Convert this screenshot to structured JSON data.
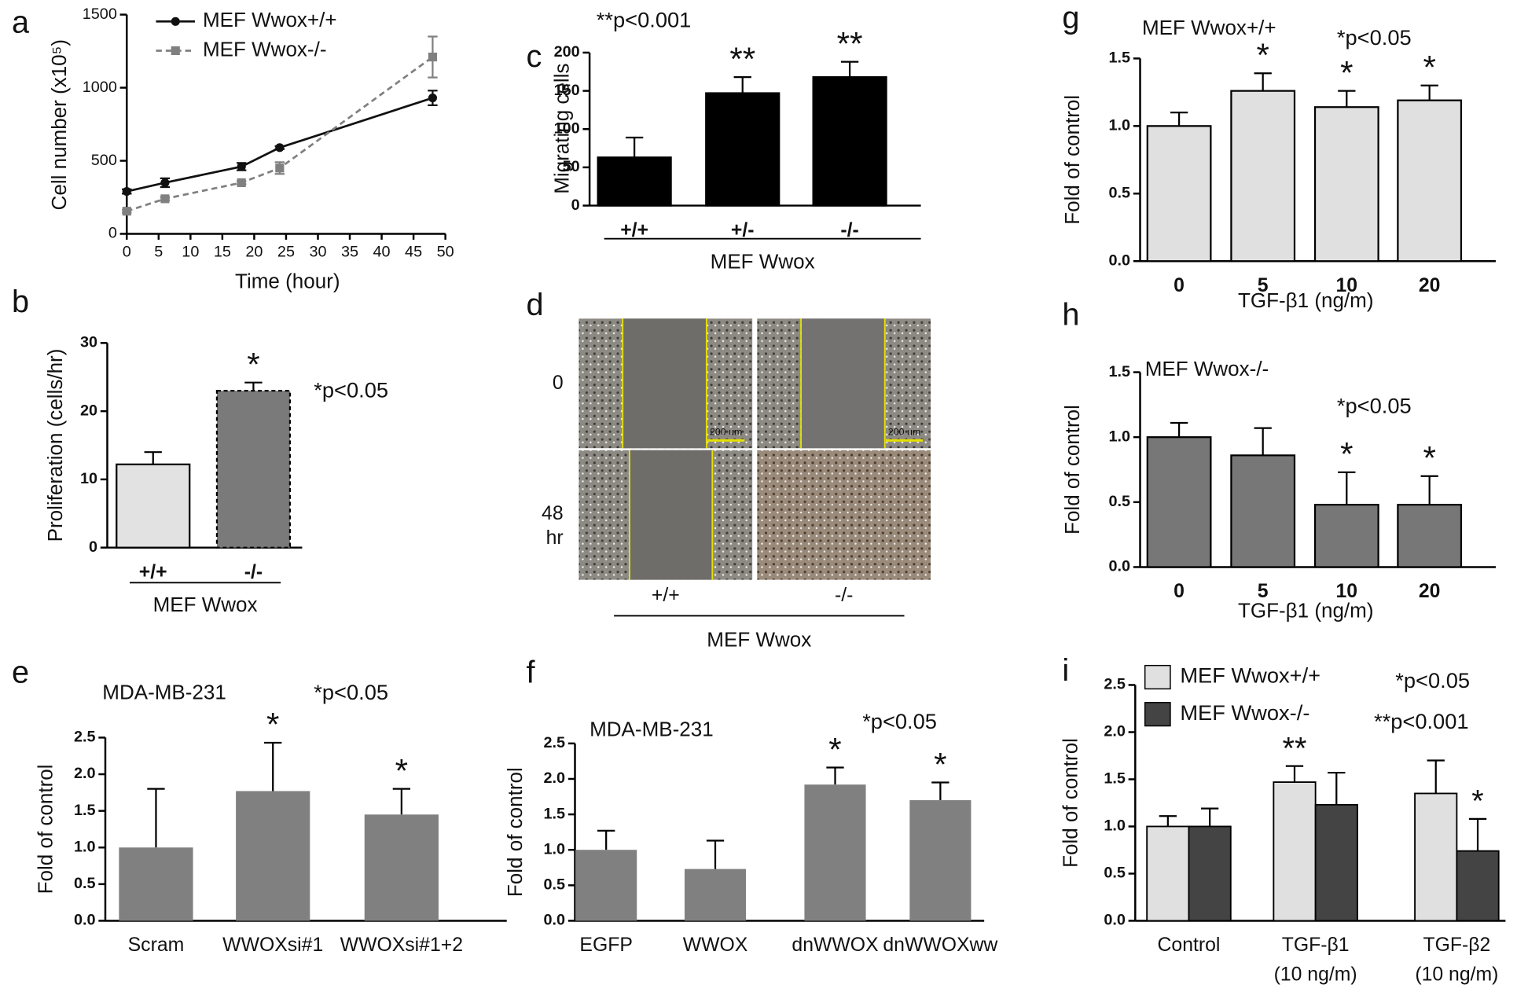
{
  "chart_data": [
    {
      "type": "line",
      "label": "a",
      "y_label": "Cell number (x10⁵)",
      "x_label": "Time (hour)",
      "x": [
        0,
        6,
        18,
        24,
        48
      ],
      "xlim": [
        0,
        50
      ],
      "xticks": [
        0,
        5,
        10,
        15,
        20,
        25,
        30,
        35,
        40,
        45,
        50
      ],
      "ylim": [
        0,
        1500
      ],
      "yticks": [
        0,
        500,
        1000,
        1500
      ],
      "series": [
        {
          "name": "MEF Wwox+/+",
          "color": "#111111",
          "marker": "circle",
          "dashed": false,
          "values": [
            290,
            350,
            460,
            590,
            930
          ],
          "errors": [
            15,
            30,
            25,
            10,
            50
          ]
        },
        {
          "name": "MEF Wwox-/-",
          "color": "#808080",
          "marker": "square",
          "dashed": true,
          "values": [
            155,
            240,
            350,
            450,
            1210
          ],
          "errors": [
            10,
            10,
            10,
            40,
            140
          ]
        }
      ]
    },
    {
      "type": "bar",
      "label": "b",
      "y_label": "Proliferation (cells/hr)",
      "group_label": "MEF Wwox",
      "categories": [
        "+/+",
        "-/-"
      ],
      "values": [
        12.2,
        23
      ],
      "errors": [
        1.8,
        1.2
      ],
      "colors": [
        "#e2e2e2",
        "#7a7a7a"
      ],
      "bar_borders": [
        "solid",
        "dashed"
      ],
      "ylim": [
        0,
        30
      ],
      "yticks": [
        0,
        10,
        20,
        30
      ],
      "annotations": [
        "*p<0.05"
      ],
      "significance": [
        {
          "category": "-/-",
          "label": "*"
        }
      ]
    },
    {
      "type": "bar",
      "label": "c",
      "y_label": "Migrating cells",
      "group_label": "MEF Wwox",
      "categories": [
        "+/+",
        "+/-",
        "-/-"
      ],
      "values": [
        63,
        147,
        168
      ],
      "errors": [
        26,
        21,
        20
      ],
      "colors": [
        "#000000",
        "#000000",
        "#000000"
      ],
      "bar_borders": [
        "solid",
        "solid",
        "solid"
      ],
      "ylim": [
        0,
        200
      ],
      "yticks": [
        0,
        50,
        100,
        150,
        200
      ],
      "annotations": [
        "**p<0.001"
      ],
      "significance": [
        {
          "category": "+/-",
          "label": "**"
        },
        {
          "category": "-/-",
          "label": "**"
        }
      ]
    },
    {
      "type": "micrograph",
      "label": "d",
      "row_labels": [
        "0",
        "48",
        "hr"
      ],
      "column_labels": [
        "+/+",
        "-/-"
      ],
      "group_label": "MEF Wwox",
      "scale_bar": "200 um"
    },
    {
      "type": "bar",
      "label": "e",
      "title": "MDA-MB-231",
      "y_label": "Fold of control",
      "categories": [
        "Scram",
        "WWOXsi#1",
        "WWOXsi#1+2"
      ],
      "values": [
        1.0,
        1.77,
        1.45
      ],
      "errors": [
        0.8,
        0.66,
        0.35
      ],
      "colors": [
        "#808080",
        "#808080",
        "#808080"
      ],
      "bar_borders": [
        "none",
        "none",
        "none"
      ],
      "ylim": [
        0,
        2.5
      ],
      "yticks": [
        {
          "value": 0,
          "label": "0.0"
        },
        0.5,
        {
          "value": 1,
          "label": "1.0"
        },
        1.5,
        {
          "value": 2,
          "label": "2.0"
        },
        2.5
      ],
      "annotations": [
        "*p<0.05"
      ],
      "significance": [
        {
          "category": "WWOXsi#1",
          "label": "*"
        },
        {
          "category": "WWOXsi#1+2",
          "label": "*"
        }
      ]
    },
    {
      "type": "bar",
      "label": "f",
      "title": "MDA-MB-231",
      "y_label": "Fold of control",
      "categories": [
        "EGFP",
        "WWOX",
        "dnWWOX",
        "dnWWOXww"
      ],
      "values": [
        1.0,
        0.73,
        1.92,
        1.7
      ],
      "errors": [
        0.27,
        0.4,
        0.24,
        0.25
      ],
      "colors": [
        "#808080",
        "#808080",
        "#808080",
        "#808080"
      ],
      "bar_borders": [
        "none",
        "none",
        "none",
        "none"
      ],
      "ylim": [
        0,
        2.5
      ],
      "yticks": [
        {
          "value": 0,
          "label": "0.0"
        },
        0.5,
        {
          "value": 1,
          "label": "1.0"
        },
        1.5,
        {
          "value": 2,
          "label": "2.0"
        },
        2.5
      ],
      "annotations": [
        "*p<0.05"
      ],
      "significance": [
        {
          "category": "dnWWOX",
          "label": "*"
        },
        {
          "category": "dnWWOXww",
          "label": "*"
        }
      ]
    },
    {
      "type": "bar",
      "label": "g",
      "title": "MEF Wwox+/+",
      "y_label": "Fold of control",
      "x_label": "TGF-β1 (ng/m)",
      "categories": [
        "0",
        "5",
        "10",
        "20"
      ],
      "values": [
        1.0,
        1.26,
        1.14,
        1.19
      ],
      "errors": [
        0.1,
        0.13,
        0.12,
        0.11
      ],
      "colors": [
        "#e0e0e0",
        "#e0e0e0",
        "#e0e0e0",
        "#e0e0e0"
      ],
      "bar_borders": [
        "solid",
        "solid",
        "solid",
        "solid"
      ],
      "ylim": [
        0,
        1.5
      ],
      "yticks": [
        {
          "value": 0,
          "label": "0.0"
        },
        0.5,
        {
          "value": 1,
          "label": "1.0"
        },
        1.5
      ],
      "annotations": [
        "*p<0.05"
      ],
      "significance": [
        {
          "category": "5",
          "label": "*"
        },
        {
          "category": "10",
          "label": "*"
        },
        {
          "category": "20",
          "label": "*"
        }
      ]
    },
    {
      "type": "bar",
      "label": "h",
      "title": "MEF Wwox-/-",
      "y_label": "Fold of control",
      "x_label": "TGF-β1 (ng/m)",
      "categories": [
        "0",
        "5",
        "10",
        "20"
      ],
      "values": [
        1.0,
        0.86,
        0.48,
        0.48
      ],
      "errors": [
        0.11,
        0.21,
        0.25,
        0.22
      ],
      "colors": [
        "#777777",
        "#777777",
        "#777777",
        "#777777"
      ],
      "bar_borders": [
        "solid",
        "solid",
        "solid",
        "solid"
      ],
      "ylim": [
        0,
        1.5
      ],
      "yticks": [
        {
          "value": 0,
          "label": "0.0"
        },
        0.5,
        {
          "value": 1,
          "label": "1.0"
        },
        1.5
      ],
      "annotations": [
        "*p<0.05"
      ],
      "significance": [
        {
          "category": "10",
          "label": "*"
        },
        {
          "category": "20",
          "label": "*"
        }
      ]
    },
    {
      "type": "grouped_bar",
      "label": "i",
      "y_label": "Fold of control",
      "categories": [
        "Control",
        "TGF-β1",
        "TGF-β2"
      ],
      "sublabels": [
        null,
        "(10 ng/m)",
        "(10 ng/m)"
      ],
      "series": [
        {
          "name": "MEF Wwox+/+",
          "color": "#e0e0e0",
          "values": [
            1.0,
            1.47,
            1.35
          ],
          "errors": [
            0.11,
            0.17,
            0.35
          ]
        },
        {
          "name": "MEF Wwox-/-",
          "color": "#444444",
          "values": [
            1.0,
            1.23,
            0.74
          ],
          "errors": [
            0.19,
            0.34,
            0.34
          ]
        }
      ],
      "ylim": [
        0,
        2.5
      ],
      "yticks": [
        {
          "value": 0,
          "label": "0.0"
        },
        0.5,
        {
          "value": 1,
          "label": "1.0"
        },
        1.5,
        {
          "value": 2,
          "label": "2.0"
        },
        2.5
      ],
      "annotations": [
        "*p<0.05",
        "**p<0.001"
      ],
      "significance": [
        {
          "category": "TGF-β1",
          "series": 0,
          "label": "**"
        },
        {
          "category": "TGF-β2",
          "series": 1,
          "label": "*"
        }
      ]
    }
  ]
}
